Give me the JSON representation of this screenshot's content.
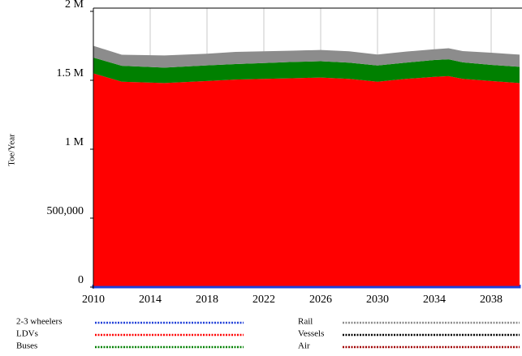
{
  "chart_data": {
    "type": "stacked_area",
    "ylabel": "Toe/Year",
    "x": [
      2010,
      2012,
      2015,
      2018,
      2020,
      2022,
      2024,
      2026,
      2028,
      2030,
      2032,
      2034,
      2035,
      2036,
      2038,
      2040
    ],
    "xlim": [
      2010,
      2040
    ],
    "xticks": [
      2010,
      2014,
      2018,
      2022,
      2026,
      2030,
      2034,
      2038
    ],
    "ylim": [
      0,
      2000000
    ],
    "yticks": [
      0,
      {
        "value": 500000,
        "label": "500,000"
      },
      {
        "value": 1000000,
        "label": "1 M"
      },
      {
        "value": 1500000,
        "label": "1.5 M"
      },
      {
        "value": 2000000,
        "label": "2 M"
      }
    ],
    "grid": true,
    "series": [
      {
        "name": "2-3 wheelers",
        "color": "#1f3fd8",
        "values": [
          8000,
          8000,
          8000,
          8000,
          8000,
          8000,
          8000,
          8000,
          8000,
          8000,
          8000,
          8000,
          8000,
          8000,
          8000,
          8000
        ]
      },
      {
        "name": "LDVs",
        "color": "#ff0000",
        "values": [
          1542000,
          1482000,
          1472000,
          1487000,
          1497000,
          1502000,
          1507000,
          1512000,
          1502000,
          1482000,
          1502000,
          1517000,
          1522000,
          1502000,
          1487000,
          1472000
        ]
      },
      {
        "name": "Buses",
        "color": "#008000",
        "values": [
          115000,
          115000,
          112000,
          113000,
          113000,
          115000,
          118000,
          118000,
          118000,
          117000,
          118000,
          122000,
          122000,
          120000,
          117000,
          118000
        ]
      },
      {
        "name": "Rail",
        "color": "#8c8c8c",
        "values": [
          85000,
          80000,
          88000,
          85000,
          88000,
          85000,
          82000,
          82000,
          82000,
          80000,
          80000,
          78000,
          80000,
          82000,
          88000,
          88000
        ]
      },
      {
        "name": "Vessels",
        "color": "#000000",
        "values": [
          0,
          0,
          0,
          0,
          0,
          0,
          0,
          0,
          0,
          0,
          0,
          0,
          0,
          0,
          0,
          0
        ]
      },
      {
        "name": "Air",
        "color": "#a00000",
        "values": [
          0,
          0,
          0,
          0,
          0,
          0,
          0,
          0,
          0,
          0,
          0,
          0,
          0,
          0,
          0,
          0
        ]
      }
    ]
  }
}
